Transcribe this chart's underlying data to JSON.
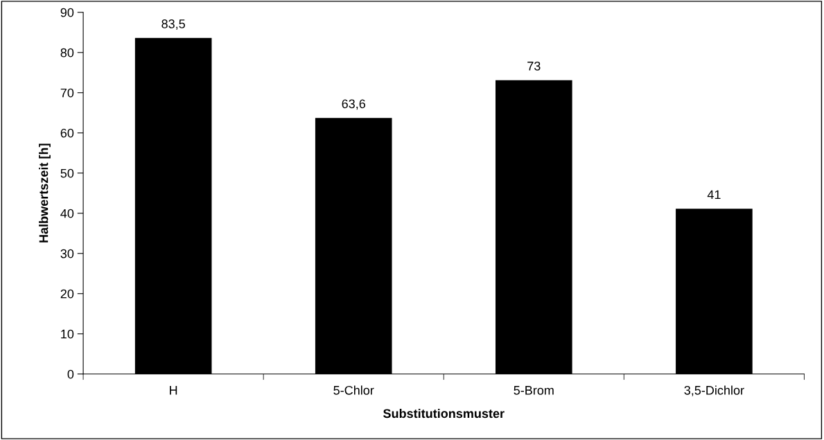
{
  "chart_data": {
    "type": "bar",
    "xlabel": "Substitutionsmuster",
    "ylabel": "Halbwertszeit [h]",
    "categories": [
      "H",
      "5-Chlor",
      "5-Brom",
      "3,5-Dichlor"
    ],
    "values": [
      83.5,
      63.6,
      73,
      41
    ],
    "value_labels": [
      "83,5",
      "63,6",
      "73",
      "41"
    ],
    "color": "#000000",
    "ylim": [
      0,
      90
    ],
    "yticks": [
      0,
      10,
      20,
      30,
      40,
      50,
      60,
      70,
      80,
      90
    ],
    "grid": false
  }
}
